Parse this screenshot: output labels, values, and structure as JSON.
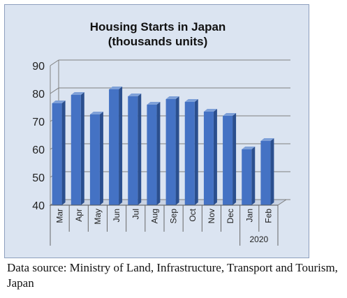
{
  "chart_data": {
    "type": "bar",
    "title": "Housing Starts in Japan",
    "subtitle": "(thousands units)",
    "categories": [
      "Mar",
      "Apr",
      "May",
      "Jun",
      "Jul",
      "Aug",
      "Sep",
      "Oct",
      "Nov",
      "Dec",
      "Jan",
      "Feb"
    ],
    "values": [
      76.5,
      79.5,
      72.5,
      81.5,
      79,
      76,
      78,
      77,
      73.5,
      72,
      60,
      63
    ],
    "year_group": {
      "label": "2020",
      "categories": [
        "Jan",
        "Feb"
      ]
    },
    "ylim": [
      40,
      90
    ],
    "yticks": [
      40,
      50,
      60,
      70,
      80,
      90
    ],
    "grid": true,
    "bar_color": "#4472c4",
    "background_color": "#dbe4f1"
  },
  "source_note": "Data source: Ministry of Land, Infrastructure, Transport and Tourism, Japan"
}
